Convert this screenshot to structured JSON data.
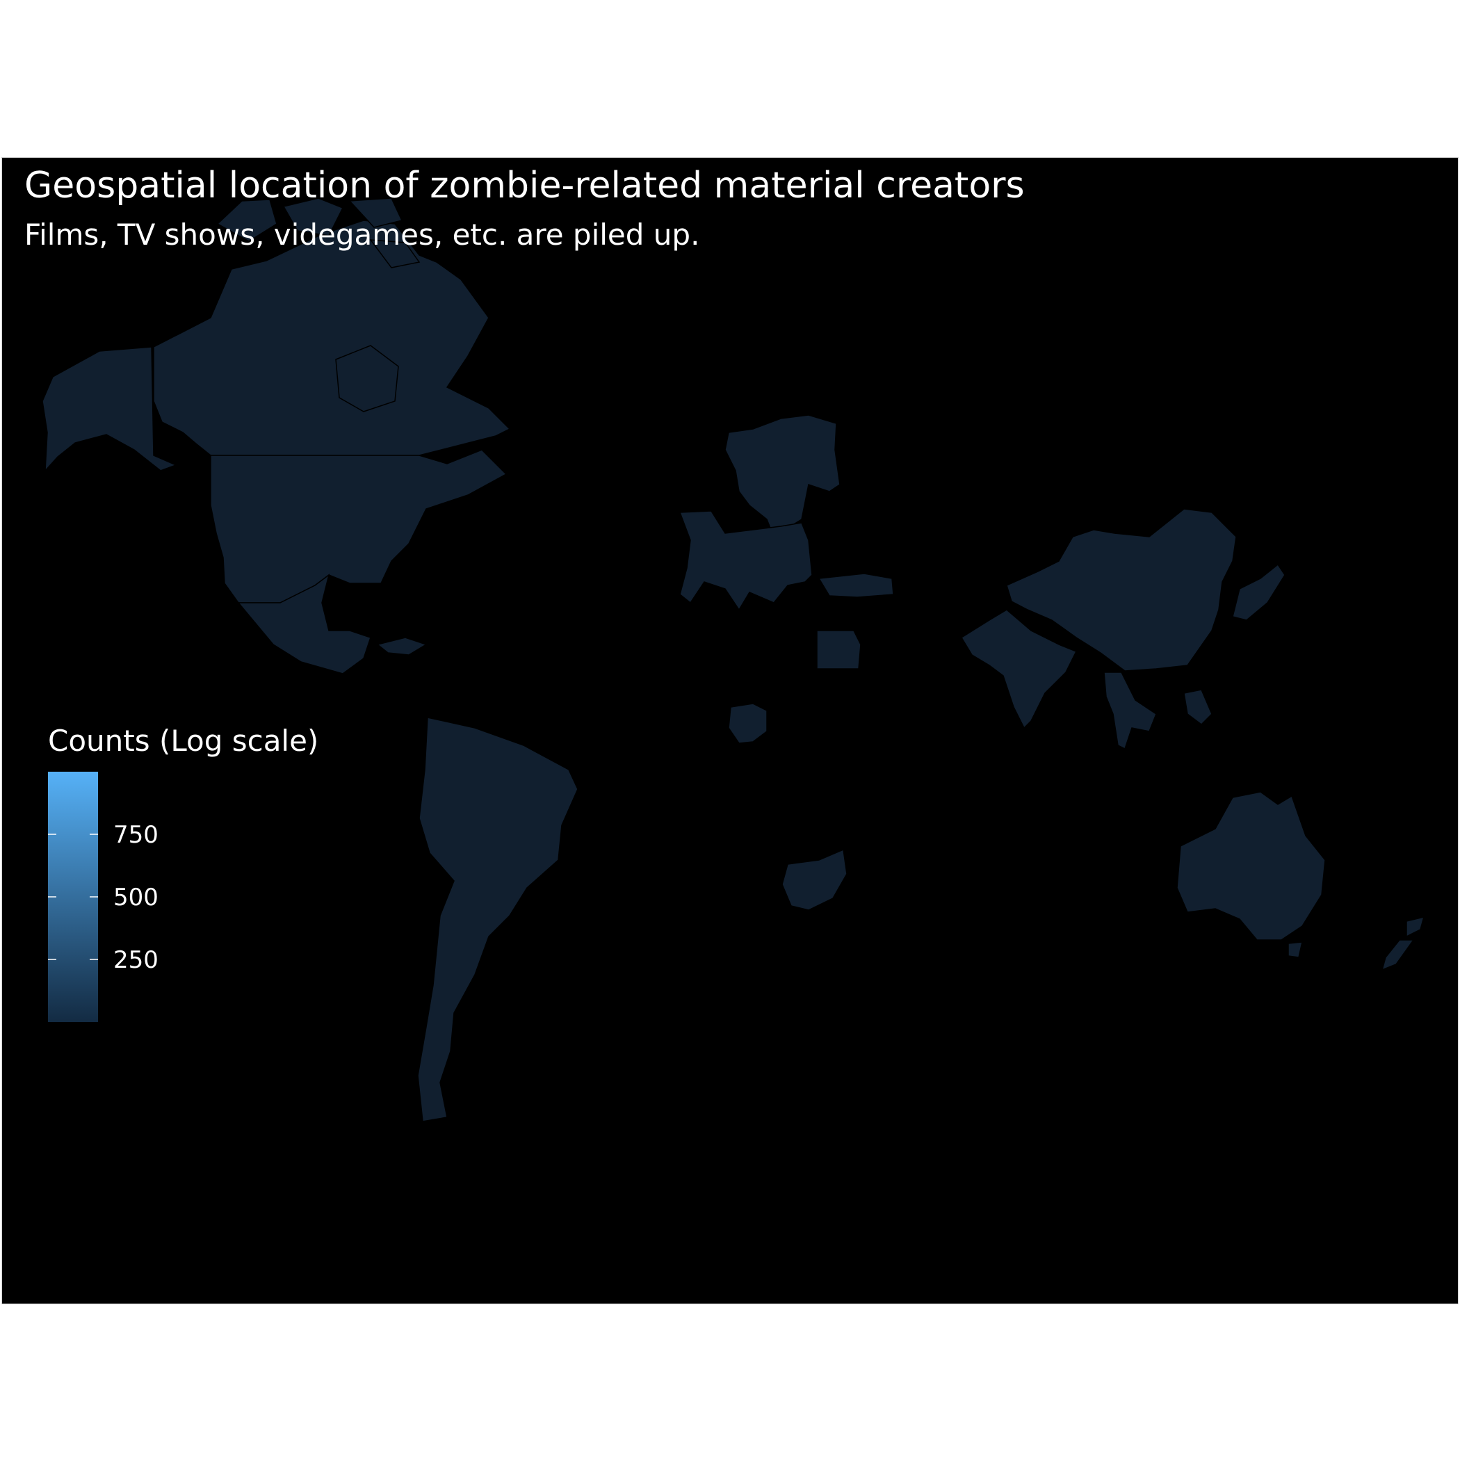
{
  "title": "Geospatial location of zombie-related material creators",
  "subtitle": "Films, TV shows, videgames, etc. are piled up.",
  "legend": {
    "title": "Counts (Log scale)",
    "ticks": [
      {
        "label": "750",
        "value": 750
      },
      {
        "label": "500",
        "value": 500
      },
      {
        "label": "250",
        "value": 250
      }
    ],
    "range": [
      0,
      1000
    ],
    "color_low": "#132b43",
    "color_high": "#56b1f7"
  },
  "colors": {
    "background": "#000000",
    "land_fill": "#111f2f",
    "border": "#000000"
  },
  "regions": [
    {
      "name": "Alaska",
      "shape": "alaska"
    },
    {
      "name": "Canada",
      "shape": "canada"
    },
    {
      "name": "Greenland-area islands",
      "shape": "arctic"
    },
    {
      "name": "United States",
      "shape": "usa"
    },
    {
      "name": "Mexico",
      "shape": "mexico"
    },
    {
      "name": "Cuba",
      "shape": "cuba"
    },
    {
      "name": "South America",
      "shape": "south_america"
    },
    {
      "name": "Scandinavia",
      "shape": "scandinavia"
    },
    {
      "name": "Europe",
      "shape": "europe"
    },
    {
      "name": "Turkey",
      "shape": "turkey"
    },
    {
      "name": "Egypt",
      "shape": "egypt"
    },
    {
      "name": "Nigeria",
      "shape": "nigeria"
    },
    {
      "name": "South Africa",
      "shape": "south_africa"
    },
    {
      "name": "China",
      "shape": "china"
    },
    {
      "name": "India",
      "shape": "india"
    },
    {
      "name": "Southeast Asia",
      "shape": "seasia"
    },
    {
      "name": "Japan",
      "shape": "japan"
    },
    {
      "name": "Australia",
      "shape": "australia"
    },
    {
      "name": "New Zealand",
      "shape": "new_zealand"
    }
  ]
}
